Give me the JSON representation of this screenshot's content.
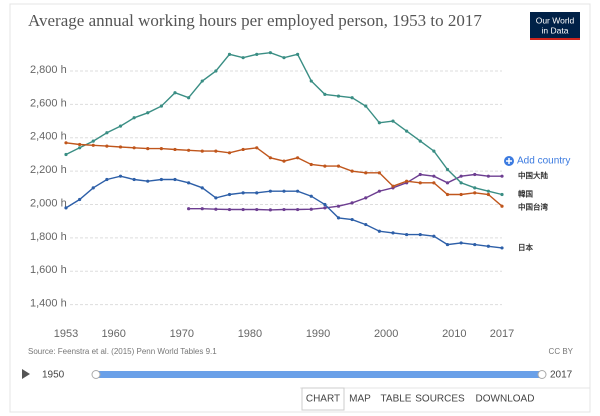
{
  "chart_data": {
    "type": "line",
    "title": "Average annual working hours per employed person, 1953 to 2017",
    "source": "Source: Feenstra et al. (2015) Penn World Tables 9.1",
    "license": "CC BY",
    "xlim": [
      1953,
      2017
    ],
    "xticks": [
      1953,
      1960,
      1970,
      1980,
      1990,
      2000,
      2010,
      2017
    ],
    "ylim": [
      1350,
      2950
    ],
    "yticks": [
      {
        "value": 1400,
        "label": "1,400 h"
      },
      {
        "value": 1600,
        "label": "1,600 h"
      },
      {
        "value": 1800,
        "label": "1,800 h"
      },
      {
        "value": 2000,
        "label": "2,000 h"
      },
      {
        "value": 2200,
        "label": "2,200 h"
      },
      {
        "value": 2400,
        "label": "2,400 h"
      },
      {
        "value": 2600,
        "label": "2,600 h"
      },
      {
        "value": 2800,
        "label": "2,800 h"
      }
    ],
    "grid": true,
    "x": [
      1953,
      1955,
      1957,
      1959,
      1961,
      1963,
      1965,
      1967,
      1969,
      1971,
      1973,
      1975,
      1977,
      1979,
      1981,
      1983,
      1985,
      1987,
      1989,
      1991,
      1993,
      1995,
      1997,
      1999,
      2001,
      2003,
      2005,
      2007,
      2009,
      2011,
      2013,
      2015,
      2017
    ],
    "series": [
      {
        "name": "中国大陆",
        "color": "#6d3e91",
        "values": [
          null,
          null,
          null,
          null,
          null,
          null,
          null,
          null,
          null,
          1975,
          1975,
          1972,
          1970,
          1970,
          1970,
          1968,
          1970,
          1970,
          1972,
          1980,
          1990,
          2010,
          2040,
          2080,
          2100,
          2130,
          2180,
          2170,
          2130,
          2170,
          2180,
          2170,
          2170
        ]
      },
      {
        "name": "韓国",
        "color": "#3a8e84",
        "values": [
          2300,
          2340,
          2380,
          2430,
          2470,
          2520,
          2550,
          2590,
          2670,
          2640,
          2740,
          2800,
          2900,
          2880,
          2900,
          2910,
          2880,
          2900,
          2740,
          2660,
          2650,
          2640,
          2590,
          2490,
          2500,
          2440,
          2380,
          2320,
          2210,
          2130,
          2100,
          2080,
          2060
        ]
      },
      {
        "name": "中国台湾",
        "color": "#c0561c",
        "values": [
          2370,
          2360,
          2355,
          2350,
          2345,
          2340,
          2335,
          2335,
          2330,
          2325,
          2320,
          2320,
          2310,
          2330,
          2340,
          2280,
          2260,
          2280,
          2240,
          2230,
          2230,
          2200,
          2190,
          2190,
          2110,
          2140,
          2130,
          2130,
          2060,
          2060,
          2070,
          2060,
          1990
        ]
      },
      {
        "name": "日本",
        "color": "#2d5fa8",
        "values": [
          1980,
          2030,
          2100,
          2150,
          2170,
          2150,
          2140,
          2150,
          2150,
          2130,
          2100,
          2040,
          2060,
          2070,
          2070,
          2080,
          2080,
          2080,
          2050,
          2000,
          1920,
          1910,
          1880,
          1840,
          1830,
          1820,
          1820,
          1810,
          1760,
          1770,
          1760,
          1750,
          1740
        ]
      }
    ]
  },
  "logo": [
    "Our World",
    "in Data"
  ],
  "add_country": "Add country",
  "timeline": {
    "start": "1950",
    "end": "2017"
  },
  "tabs": [
    "CHART",
    "MAP",
    "TABLE",
    "SOURCES",
    "DOWNLOAD"
  ]
}
